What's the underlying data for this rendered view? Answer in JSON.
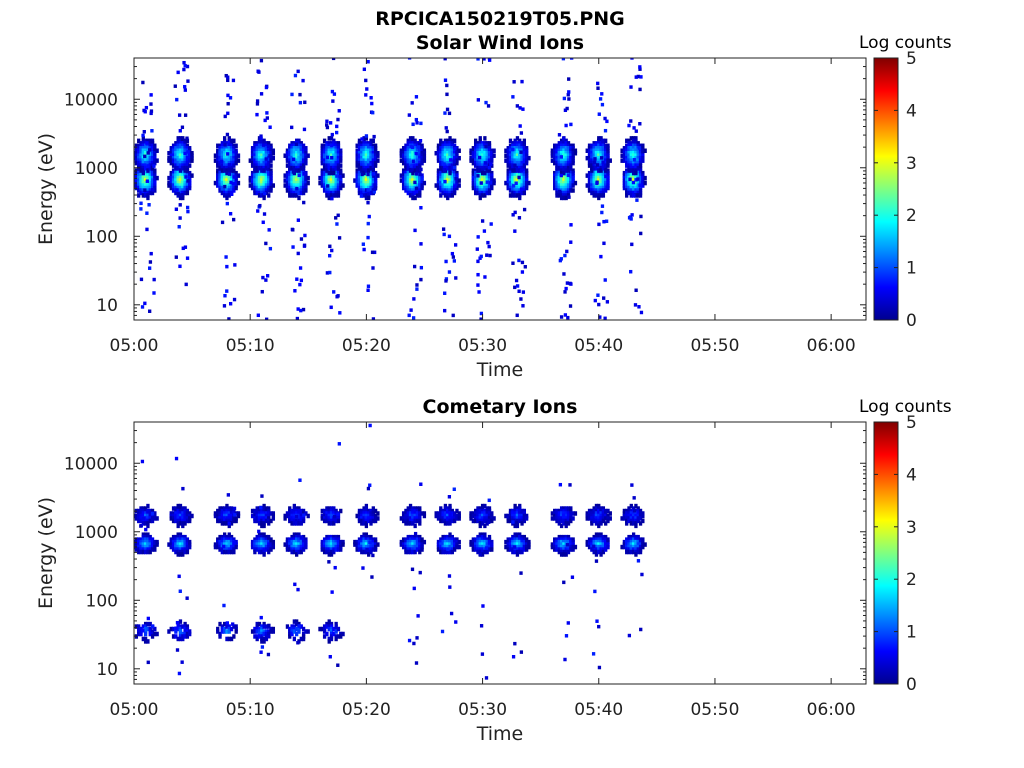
{
  "figure": {
    "title": "RPCICA150219T05.PNG"
  },
  "colors": {
    "colormap": "jet",
    "stops": [
      "#00008f",
      "#0000ff",
      "#0080ff",
      "#00ffff",
      "#80ff80",
      "#ffff00",
      "#ff8000",
      "#ff0000",
      "#800000"
    ],
    "axis": "#222222",
    "background": "#ffffff"
  },
  "chart_data": [
    {
      "type": "heatmap",
      "title": "Solar Wind Ions",
      "xlabel": "Time",
      "ylabel": "Energy (eV)",
      "x_ticks": [
        "05:00",
        "05:10",
        "05:20",
        "05:30",
        "05:40",
        "05:50",
        "06:00"
      ],
      "x_range": [
        "05:00",
        "06:03"
      ],
      "y_ticks": [
        "10",
        "100",
        "1000",
        "10000"
      ],
      "y_scale": "log",
      "ylim": [
        6,
        40000
      ],
      "colorbar": {
        "label": "Log counts",
        "ticks": [
          "0",
          "1",
          "2",
          "3",
          "4",
          "5"
        ],
        "range": [
          0,
          5
        ]
      },
      "data_end_time": "05:44",
      "sweep_times": [
        "05:01",
        "05:04",
        "05:08",
        "05:11",
        "05:14",
        "05:17",
        "05:20",
        "05:24",
        "05:27",
        "05:30",
        "05:33",
        "05:37",
        "05:40",
        "05:43"
      ],
      "peaks": [
        {
          "energy_ev": 650,
          "log_counts": 3.0
        },
        {
          "energy_ev": 1500,
          "log_counts": 2.2
        }
      ]
    },
    {
      "type": "heatmap",
      "title": "Cometary Ions",
      "xlabel": "Time",
      "ylabel": "Energy (eV)",
      "x_ticks": [
        "05:00",
        "05:10",
        "05:20",
        "05:30",
        "05:40",
        "05:50",
        "06:00"
      ],
      "x_range": [
        "05:00",
        "06:03"
      ],
      "y_ticks": [
        "10",
        "100",
        "1000",
        "10000"
      ],
      "y_scale": "log",
      "ylim": [
        6,
        40000
      ],
      "colorbar": {
        "label": "Log counts",
        "ticks": [
          "0",
          "1",
          "2",
          "3",
          "4",
          "5"
        ],
        "range": [
          0,
          5
        ]
      },
      "data_end_time": "05:44",
      "sweep_times": [
        "05:01",
        "05:04",
        "05:08",
        "05:11",
        "05:14",
        "05:17",
        "05:20",
        "05:24",
        "05:27",
        "05:30",
        "05:33",
        "05:37",
        "05:40",
        "05:43"
      ],
      "peaks": [
        {
          "energy_ev": 650,
          "log_counts": 1.8
        },
        {
          "energy_ev": 1700,
          "log_counts": 1.0
        },
        {
          "energy_ev": 35,
          "log_counts": 1.2
        }
      ]
    }
  ]
}
